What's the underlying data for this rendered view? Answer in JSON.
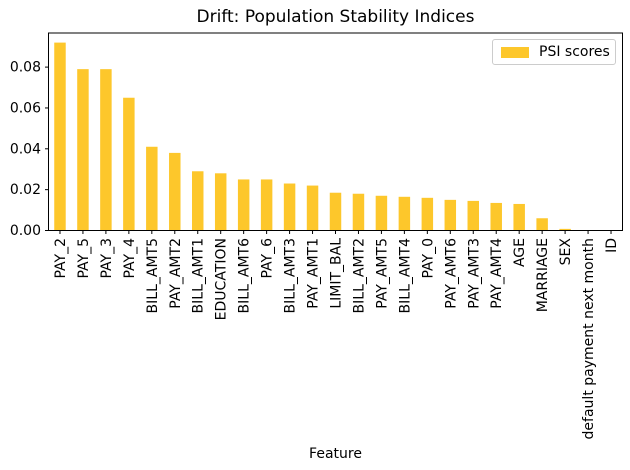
{
  "chart_data": {
    "type": "bar",
    "title": "Drift: Population Stability Indices",
    "xlabel": "Feature",
    "ylabel": "",
    "legend": {
      "label": "PSI scores",
      "position": "upper right"
    },
    "bar_color": "#fdc72b",
    "axis_color": "#000000",
    "grid": false,
    "ylim": [
      0,
      0.0967
    ],
    "yticks": [
      0,
      0.02,
      0.04,
      0.06,
      0.08
    ],
    "categories": [
      "PAY_2",
      "PAY_5",
      "PAY_3",
      "PAY_4",
      "BILL_AMT5",
      "PAY_AMT2",
      "BILL_AMT1",
      "EDUCATION",
      "BILL_AMT6",
      "PAY_6",
      "BILL_AMT3",
      "PAY_AMT1",
      "LIMIT_BAL",
      "BILL_AMT2",
      "PAY_AMT5",
      "BILL_AMT4",
      "PAY_0",
      "PAY_AMT6",
      "PAY_AMT3",
      "PAY_AMT4",
      "AGE",
      "MARRIAGE",
      "SEX",
      "default payment next month",
      "ID"
    ],
    "values": [
      0.092,
      0.079,
      0.079,
      0.065,
      0.041,
      0.038,
      0.029,
      0.028,
      0.025,
      0.025,
      0.023,
      0.022,
      0.0185,
      0.018,
      0.017,
      0.0165,
      0.016,
      0.015,
      0.0145,
      0.0135,
      0.013,
      0.006,
      0.0008,
      0.0002,
      0.0
    ]
  }
}
